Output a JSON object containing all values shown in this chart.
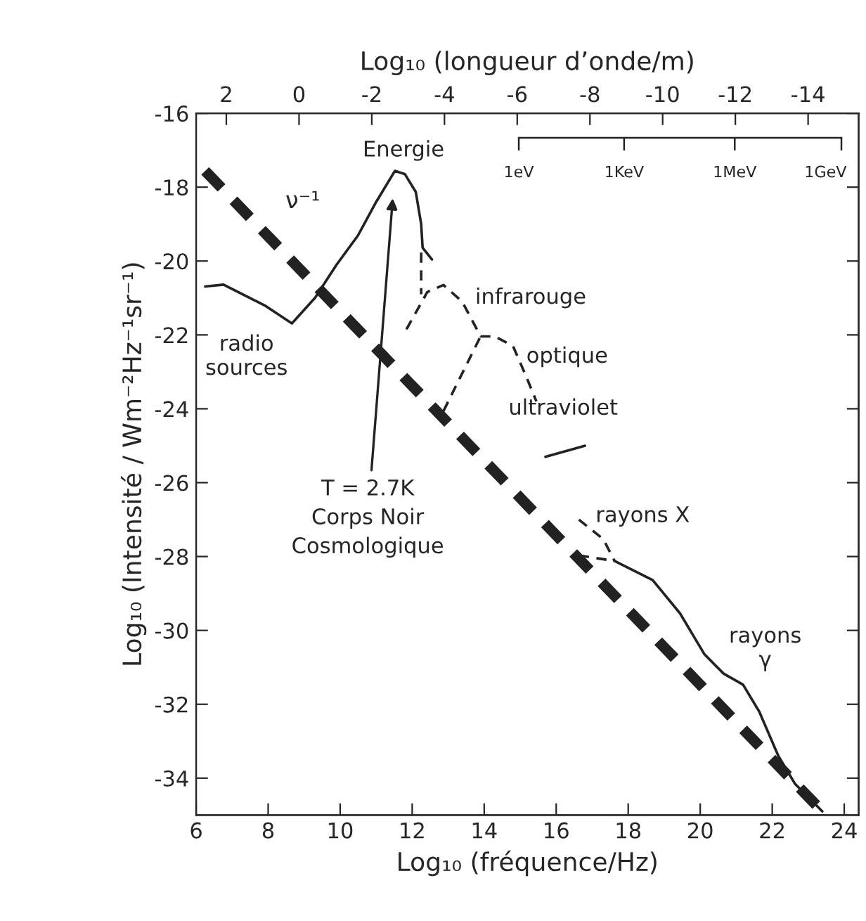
{
  "chart_data": {
    "type": "line",
    "xlabel": "Log₁₀ (fréquence/Hz)",
    "ylabel": "Log₁₀ (Intensité / Wm⁻²Hz⁻¹sr⁻¹)",
    "x2label": "Log₁₀ (longueur d’onde/m)",
    "xlim": [
      6,
      24.4
    ],
    "xticks": [
      6,
      8,
      10,
      12,
      14,
      16,
      18,
      20,
      22,
      24
    ],
    "ylim": [
      -35,
      -16
    ],
    "yticks": [
      -16,
      -18,
      -20,
      -22,
      -24,
      -26,
      -28,
      -30,
      -32,
      -34
    ],
    "x2lim": [
      2.83,
      -15.39
    ],
    "x2ticks": [
      2,
      0,
      -2,
      -4,
      -6,
      -8,
      -10,
      -12,
      -14
    ],
    "grid": false,
    "series": [
      {
        "color": "#222222",
        "line_style": "dashed",
        "x": [
          6.25,
          23.39
        ],
        "values": [
          -17.56,
          -34.9
        ]
      },
      {
        "color": "#222222",
        "line_style": "solid",
        "x": [
          6.25,
          6.76,
          7.9,
          8.66,
          9.3,
          9.9,
          10.5,
          11.0,
          11.52,
          11.8,
          12.1,
          12.25,
          12.29,
          12.55
        ],
        "values": [
          -20.69,
          -20.64,
          -21.2,
          -21.69,
          -21.0,
          -20.1,
          -19.3,
          -18.4,
          -17.56,
          -17.65,
          -18.13,
          -19.0,
          -19.64,
          -19.96
        ]
      },
      {
        "color": "#222222",
        "line_style": "dashed",
        "x": [
          12.25,
          12.25
        ],
        "values": [
          -19.77,
          -20.9
        ]
      },
      {
        "color": "#222222",
        "line_style": "dashed",
        "x": [
          11.84,
          12.42,
          12.87,
          13.39,
          13.9,
          14.29,
          14.8,
          15.19,
          15.45
        ],
        "values": [
          -21.85,
          -20.84,
          -20.65,
          -21.1,
          -22.04,
          -22.04,
          -22.3,
          -23.18,
          -23.8
        ]
      },
      {
        "color": "#222222",
        "line_style": "dashed",
        "x": [
          12.87,
          13.9
        ],
        "values": [
          -24.06,
          -22.04
        ]
      },
      {
        "color": "#222222",
        "line_style": "solid",
        "x": [
          15.7,
          16.8
        ],
        "values": [
          -25.3,
          -25.0
        ]
      },
      {
        "color": "#222222",
        "line_style": "dashed",
        "x": [
          16.63,
          17.31,
          17.62
        ],
        "values": [
          -27.0,
          -27.53,
          -28.12
        ]
      },
      {
        "color": "#222222",
        "line_style": "dashed",
        "x": [
          16.63,
          17.62
        ],
        "values": [
          -27.97,
          -28.12
        ]
      },
      {
        "color": "#222222",
        "line_style": "solid",
        "x": [
          17.62,
          18.68,
          19.44,
          20.12,
          20.65,
          21.19,
          21.64,
          22.17,
          22.63,
          23.39
        ],
        "values": [
          -28.12,
          -28.64,
          -29.54,
          -30.65,
          -31.17,
          -31.47,
          -32.2,
          -33.4,
          -34.15,
          -34.9
        ]
      }
    ],
    "annotations": [
      "T = 2.7K\nCorps Noir\nCosmologique",
      "ν⁻¹",
      "radio\nsources",
      "infrarouge",
      "optique",
      "ultraviolet",
      "rayons X",
      "rayons\nγ",
      "Energie",
      "1eV",
      "1KeV",
      "1MeV",
      "1GeV"
    ]
  }
}
